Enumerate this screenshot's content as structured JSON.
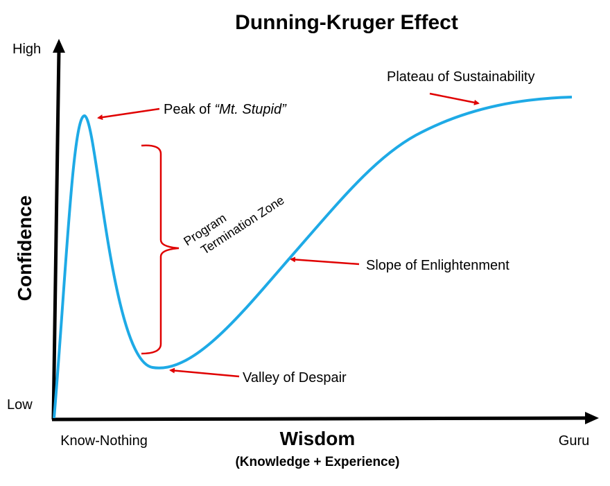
{
  "title": "Dunning-Kruger Effect",
  "y_axis": {
    "label": "Confidence",
    "high": "High",
    "low": "Low"
  },
  "x_axis": {
    "label": "Wisdom",
    "sublabel": "(Knowledge + Experience)",
    "start": "Know-Nothing",
    "end": "Guru"
  },
  "annotations": {
    "peak": {
      "text": "Peak of",
      "emphasis": "“Mt. Stupid”"
    },
    "plateau": "Plateau of Sustainability",
    "slope": "Slope of Enlightenment",
    "valley": "Valley of Despair",
    "zone": [
      "Program",
      "Termination Zone"
    ]
  }
}
